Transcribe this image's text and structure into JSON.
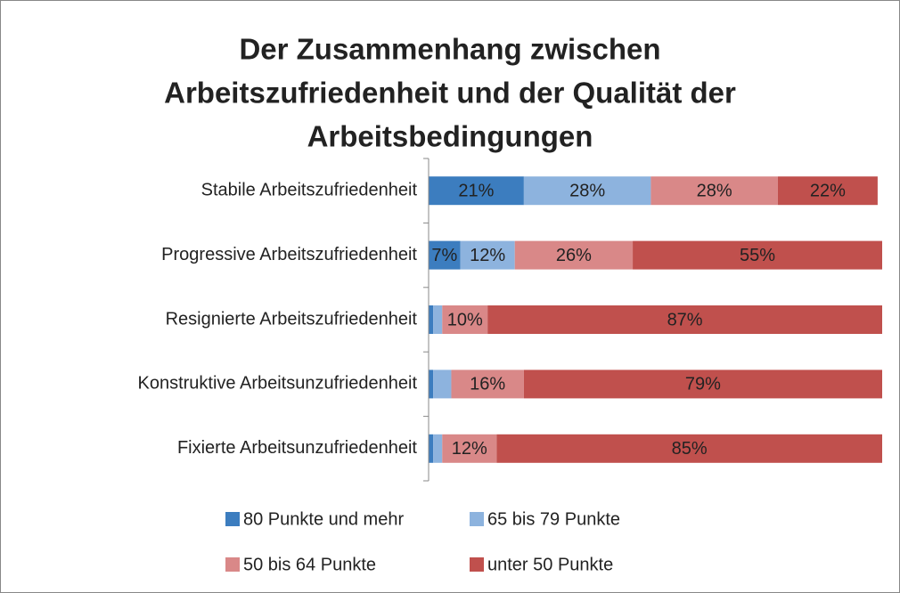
{
  "chart_data": {
    "type": "stacked_bar_horizontal",
    "title": [
      "Der Zusammenhang zwischen",
      "Arbeitszufriedenheit und der Qualität der",
      "Arbeitsbedingungen"
    ],
    "categories": [
      "Stabile Arbeitszufriedenheit",
      "Progressive Arbeitszufriedenheit",
      "Resignierte Arbeitszufriedenheit",
      "Konstruktive Arbeitsunzufriedenheit",
      "Fixierte Arbeitsunzufriedenheit"
    ],
    "xlim": [
      0,
      100
    ],
    "series": [
      {
        "name": "80 Punkte und mehr",
        "color": "#3c7dbf",
        "values": [
          21,
          7,
          1,
          1,
          1
        ],
        "value_labels": [
          "21%",
          "7%",
          null,
          null,
          null
        ]
      },
      {
        "name": "65 bis 79 Punkte",
        "color": "#8db3de",
        "values": [
          28,
          12,
          2,
          4,
          2
        ],
        "value_labels": [
          "28%",
          "12%",
          null,
          null,
          null
        ]
      },
      {
        "name": "50 bis 64 Punkte",
        "color": "#d98888",
        "values": [
          28,
          26,
          10,
          16,
          12
        ],
        "value_labels": [
          "28%",
          "26%",
          "10%",
          "16%",
          "12%"
        ]
      },
      {
        "name": "unter 50 Punkte",
        "color": "#c0504d",
        "values": [
          22,
          55,
          87,
          79,
          85
        ],
        "value_labels": [
          "22%",
          "55%",
          "87%",
          "79%",
          "85%"
        ]
      }
    ],
    "legend": "bottom"
  }
}
